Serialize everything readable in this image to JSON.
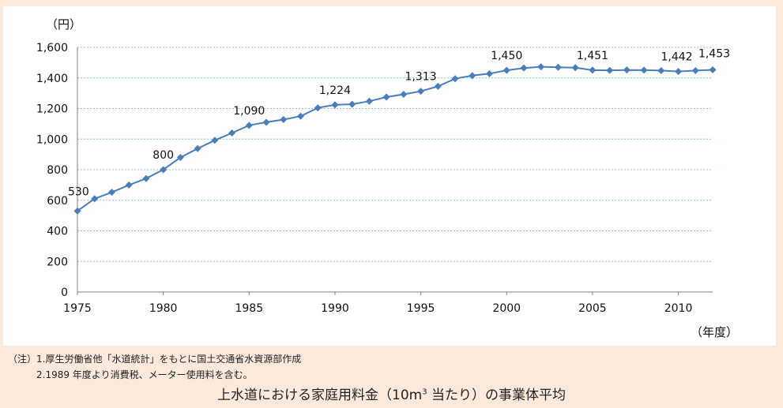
{
  "chart_data": {
    "type": "line",
    "title": "",
    "ylabel": "（円）",
    "xlabel": "（年度）",
    "ylim": [
      0,
      1600
    ],
    "yticks": [
      0,
      200,
      400,
      600,
      800,
      1000,
      1200,
      1400,
      1600
    ],
    "ytick_labels": [
      "0",
      "200",
      "400",
      "600",
      "800",
      "1,000",
      "1,200",
      "1,400",
      "1,600"
    ],
    "xlim": [
      1975,
      2012
    ],
    "xticks": [
      1975,
      1980,
      1985,
      1990,
      1995,
      2000,
      2005,
      2010
    ],
    "xtick_labels": [
      "1975",
      "1980",
      "1985",
      "1990",
      "1995",
      "2000",
      "2005",
      "2010"
    ],
    "grid": true,
    "series": [
      {
        "name": "家庭用料金（10m3当たり）",
        "color": "#4a7ebb",
        "x": [
          1975,
          1976,
          1977,
          1978,
          1979,
          1980,
          1981,
          1982,
          1983,
          1984,
          1985,
          1986,
          1987,
          1988,
          1989,
          1990,
          1991,
          1992,
          1993,
          1994,
          1995,
          1996,
          1997,
          1998,
          1999,
          2000,
          2001,
          2002,
          2003,
          2004,
          2005,
          2006,
          2007,
          2008,
          2009,
          2010,
          2011,
          2012
        ],
        "values": [
          530,
          610,
          652,
          700,
          742,
          800,
          880,
          938,
          992,
          1040,
          1090,
          1110,
          1128,
          1150,
          1204,
          1224,
          1228,
          1248,
          1275,
          1293,
          1313,
          1345,
          1395,
          1415,
          1428,
          1450,
          1465,
          1473,
          1470,
          1467,
          1451,
          1450,
          1452,
          1451,
          1448,
          1442,
          1448,
          1453
        ]
      }
    ],
    "data_labels": [
      {
        "x": 1975,
        "value": 530,
        "text": "530"
      },
      {
        "x": 1980,
        "value": 800,
        "text": "800"
      },
      {
        "x": 1985,
        "value": 1090,
        "text": "1,090"
      },
      {
        "x": 1990,
        "value": 1224,
        "text": "1,224"
      },
      {
        "x": 1995,
        "value": 1313,
        "text": "1,313"
      },
      {
        "x": 2000,
        "value": 1450,
        "text": "1,450"
      },
      {
        "x": 2005,
        "value": 1451,
        "text": "1,451"
      },
      {
        "x": 2010,
        "value": 1442,
        "text": "1,442"
      },
      {
        "x": 2012,
        "value": 1453,
        "text": "1,453"
      }
    ]
  },
  "notes": {
    "line1": "（注）1.厚生労働省他「水道統計」をもとに国土交通省水資源部作成",
    "line2": "2.1989 年度より消費税、メーター使用料を含む。"
  },
  "caption": {
    "before": "上水道における家庭用料金（10m",
    "sup": "3",
    "after": " 当たり）の事業体平均"
  }
}
